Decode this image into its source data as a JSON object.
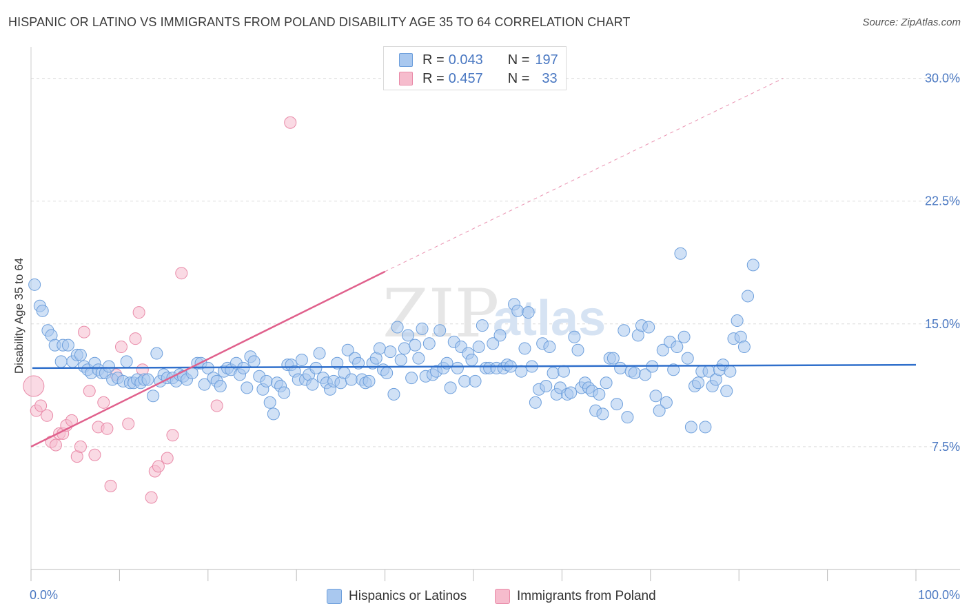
{
  "header": {
    "title": "HISPANIC OR LATINO VS IMMIGRANTS FROM POLAND DISABILITY AGE 35 TO 64 CORRELATION CHART",
    "source": "Source: ZipAtlas.com"
  },
  "watermark": {
    "zip": "ZIP",
    "atlas": "atlas"
  },
  "legend": {
    "rows": [
      {
        "r_label": "R = ",
        "r_value": "0.043",
        "n_label": "N = ",
        "n_value": "197"
      },
      {
        "r_label": "R = ",
        "r_value": "0.457",
        "n_label": "N = ",
        "n_value": "33"
      }
    ]
  },
  "bottom_legend": {
    "series_a": "Hispanics or Latinos",
    "series_b": "Immigrants from Poland"
  },
  "colors": {
    "blue_fill": "#a9c8ef",
    "blue_stroke": "#6d9fdc",
    "blue_line": "#2f6fcb",
    "pink_fill": "#f6bccd",
    "pink_stroke": "#e98aa8",
    "pink_line": "#e0608c",
    "tick_text": "#4a78c2",
    "grid": "#dcdcdc"
  },
  "chart_data": {
    "type": "scatter",
    "title": "HISPANIC OR LATINO VS IMMIGRANTS FROM POLAND DISABILITY AGE 35 TO 64 CORRELATION CHART",
    "xlabel": "",
    "ylabel": "Disability Age 35 to 64",
    "xlim": [
      0,
      100
    ],
    "ylim": [
      0,
      31.5
    ],
    "x_tick_labels": [
      "0.0%",
      "100.0%"
    ],
    "y_ticks": [
      7.5,
      15.0,
      22.5,
      30.0
    ],
    "y_tick_labels": [
      "7.5%",
      "15.0%",
      "22.5%",
      "30.0%"
    ],
    "grid": "horizontal dashed",
    "legend_position": "top-center",
    "series": [
      {
        "name": "Hispanics or Latinos",
        "color": "#a9c8ef",
        "trend": {
          "x": [
            0,
            100
          ],
          "y": [
            12.3,
            12.5
          ]
        },
        "points": [
          [
            0.4,
            17.4
          ],
          [
            1.0,
            16.1
          ],
          [
            1.3,
            15.8
          ],
          [
            1.9,
            14.6
          ],
          [
            2.3,
            14.3
          ],
          [
            2.7,
            13.7
          ],
          [
            3.4,
            12.7
          ],
          [
            3.6,
            13.7
          ],
          [
            4.2,
            13.7
          ],
          [
            4.7,
            12.7
          ],
          [
            5.2,
            13.1
          ],
          [
            5.6,
            13.1
          ],
          [
            6.0,
            12.4
          ],
          [
            6.4,
            12.2
          ],
          [
            6.8,
            12.0
          ],
          [
            7.2,
            12.6
          ],
          [
            7.6,
            12.2
          ],
          [
            8.0,
            12.0
          ],
          [
            8.4,
            12.0
          ],
          [
            8.8,
            12.4
          ],
          [
            9.2,
            11.6
          ],
          [
            9.8,
            11.7
          ],
          [
            10.4,
            11.5
          ],
          [
            10.8,
            12.7
          ],
          [
            11.2,
            11.4
          ],
          [
            11.6,
            11.4
          ],
          [
            12.0,
            11.6
          ],
          [
            12.4,
            11.4
          ],
          [
            12.8,
            11.6
          ],
          [
            13.2,
            11.6
          ],
          [
            13.8,
            10.6
          ],
          [
            14.2,
            13.2
          ],
          [
            14.6,
            11.5
          ],
          [
            15.0,
            11.9
          ],
          [
            15.4,
            11.7
          ],
          [
            16.0,
            11.7
          ],
          [
            16.4,
            11.5
          ],
          [
            16.8,
            11.9
          ],
          [
            17.2,
            11.8
          ],
          [
            17.6,
            11.6
          ],
          [
            18.2,
            12.0
          ],
          [
            18.8,
            12.6
          ],
          [
            19.2,
            12.6
          ],
          [
            19.6,
            11.3
          ],
          [
            20.0,
            12.3
          ],
          [
            20.6,
            11.7
          ],
          [
            21.0,
            11.5
          ],
          [
            21.4,
            11.2
          ],
          [
            21.8,
            12.1
          ],
          [
            22.2,
            12.3
          ],
          [
            22.6,
            12.2
          ],
          [
            23.2,
            12.6
          ],
          [
            23.6,
            11.9
          ],
          [
            24.0,
            12.3
          ],
          [
            24.4,
            11.1
          ],
          [
            24.8,
            13.0
          ],
          [
            25.2,
            12.7
          ],
          [
            25.8,
            11.8
          ],
          [
            26.2,
            11.0
          ],
          [
            26.6,
            11.5
          ],
          [
            27.0,
            10.2
          ],
          [
            27.4,
            9.5
          ],
          [
            27.8,
            11.4
          ],
          [
            28.2,
            11.2
          ],
          [
            28.6,
            10.8
          ],
          [
            29.0,
            12.5
          ],
          [
            29.4,
            12.5
          ],
          [
            29.8,
            12.1
          ],
          [
            30.2,
            11.6
          ],
          [
            30.6,
            12.8
          ],
          [
            31.0,
            11.6
          ],
          [
            31.4,
            11.9
          ],
          [
            31.8,
            11.3
          ],
          [
            32.2,
            12.3
          ],
          [
            32.6,
            13.2
          ],
          [
            33.0,
            11.7
          ],
          [
            33.4,
            11.4
          ],
          [
            33.8,
            11.0
          ],
          [
            34.2,
            11.5
          ],
          [
            34.6,
            12.6
          ],
          [
            35.0,
            11.4
          ],
          [
            35.4,
            12.0
          ],
          [
            35.8,
            13.4
          ],
          [
            36.2,
            11.6
          ],
          [
            36.6,
            12.9
          ],
          [
            37.0,
            12.6
          ],
          [
            37.4,
            11.6
          ],
          [
            37.8,
            11.4
          ],
          [
            38.2,
            11.5
          ],
          [
            38.6,
            12.6
          ],
          [
            39.0,
            12.9
          ],
          [
            39.4,
            13.5
          ],
          [
            39.8,
            12.2
          ],
          [
            40.2,
            12.0
          ],
          [
            40.6,
            13.3
          ],
          [
            41.0,
            10.7
          ],
          [
            41.4,
            14.8
          ],
          [
            41.8,
            12.8
          ],
          [
            42.2,
            13.5
          ],
          [
            42.6,
            14.3
          ],
          [
            43.0,
            11.7
          ],
          [
            43.4,
            13.7
          ],
          [
            43.8,
            12.9
          ],
          [
            44.2,
            14.7
          ],
          [
            44.6,
            11.8
          ],
          [
            45.0,
            13.8
          ],
          [
            45.4,
            11.9
          ],
          [
            45.8,
            12.1
          ],
          [
            46.2,
            14.6
          ],
          [
            46.6,
            12.3
          ],
          [
            47.0,
            12.6
          ],
          [
            47.4,
            11.1
          ],
          [
            47.8,
            13.9
          ],
          [
            48.2,
            12.3
          ],
          [
            48.6,
            13.6
          ],
          [
            49.0,
            11.5
          ],
          [
            49.4,
            13.2
          ],
          [
            49.8,
            12.8
          ],
          [
            50.2,
            11.5
          ],
          [
            50.6,
            13.6
          ],
          [
            51.0,
            14.9
          ],
          [
            51.4,
            12.3
          ],
          [
            51.8,
            12.3
          ],
          [
            52.2,
            13.8
          ],
          [
            52.6,
            12.3
          ],
          [
            53.0,
            14.3
          ],
          [
            53.4,
            12.3
          ],
          [
            53.8,
            12.5
          ],
          [
            54.2,
            12.4
          ],
          [
            54.6,
            16.2
          ],
          [
            55.0,
            15.8
          ],
          [
            55.4,
            12.1
          ],
          [
            55.8,
            13.5
          ],
          [
            56.2,
            15.7
          ],
          [
            56.6,
            12.4
          ],
          [
            57.0,
            10.2
          ],
          [
            57.4,
            11.0
          ],
          [
            57.8,
            13.8
          ],
          [
            58.2,
            11.2
          ],
          [
            58.6,
            13.6
          ],
          [
            59.0,
            12.0
          ],
          [
            59.4,
            10.7
          ],
          [
            59.8,
            11.1
          ],
          [
            60.2,
            12.1
          ],
          [
            60.6,
            10.7
          ],
          [
            61.0,
            10.8
          ],
          [
            61.4,
            14.2
          ],
          [
            61.8,
            13.4
          ],
          [
            62.2,
            11.1
          ],
          [
            62.6,
            11.4
          ],
          [
            63.0,
            11.1
          ],
          [
            63.4,
            10.9
          ],
          [
            63.8,
            9.7
          ],
          [
            64.2,
            10.7
          ],
          [
            64.6,
            9.5
          ],
          [
            65.0,
            11.4
          ],
          [
            65.4,
            12.9
          ],
          [
            65.8,
            12.9
          ],
          [
            66.2,
            10.1
          ],
          [
            66.6,
            12.3
          ],
          [
            67.0,
            14.6
          ],
          [
            67.4,
            9.3
          ],
          [
            67.8,
            12.1
          ],
          [
            68.2,
            12.0
          ],
          [
            68.6,
            14.3
          ],
          [
            69.0,
            14.9
          ],
          [
            69.4,
            11.9
          ],
          [
            69.8,
            14.8
          ],
          [
            70.2,
            12.4
          ],
          [
            70.6,
            10.6
          ],
          [
            71.0,
            9.7
          ],
          [
            71.4,
            13.4
          ],
          [
            71.8,
            10.2
          ],
          [
            72.2,
            13.9
          ],
          [
            72.6,
            12.2
          ],
          [
            73.0,
            13.6
          ],
          [
            73.4,
            19.3
          ],
          [
            73.8,
            14.2
          ],
          [
            74.2,
            12.9
          ],
          [
            74.6,
            8.7
          ],
          [
            75.0,
            11.2
          ],
          [
            75.4,
            11.4
          ],
          [
            75.8,
            12.1
          ],
          [
            76.2,
            8.7
          ],
          [
            76.6,
            12.1
          ],
          [
            77.0,
            11.2
          ],
          [
            77.4,
            11.6
          ],
          [
            77.8,
            12.2
          ],
          [
            78.2,
            12.5
          ],
          [
            78.6,
            10.9
          ],
          [
            79.0,
            12.1
          ],
          [
            79.4,
            14.1
          ],
          [
            79.8,
            15.2
          ],
          [
            80.2,
            14.2
          ],
          [
            80.6,
            13.6
          ],
          [
            81.0,
            16.7
          ],
          [
            81.6,
            18.6
          ]
        ]
      },
      {
        "name": "Immigrants from Poland",
        "color": "#f6bccd",
        "trend": {
          "x": [
            0,
            40
          ],
          "y": [
            7.5,
            18.2
          ]
        },
        "trend_extension": {
          "x": [
            40,
            85
          ],
          "y": [
            18.2,
            30.0
          ]
        },
        "points": [
          [
            0.3,
            11.2
          ],
          [
            0.6,
            9.7
          ],
          [
            1.1,
            10.0
          ],
          [
            1.8,
            9.4
          ],
          [
            2.3,
            7.8
          ],
          [
            2.8,
            7.6
          ],
          [
            3.2,
            8.3
          ],
          [
            3.6,
            8.3
          ],
          [
            4.0,
            8.8
          ],
          [
            4.6,
            9.1
          ],
          [
            5.2,
            6.9
          ],
          [
            5.6,
            7.5
          ],
          [
            6.0,
            14.5
          ],
          [
            6.6,
            10.9
          ],
          [
            7.2,
            7.0
          ],
          [
            7.6,
            8.7
          ],
          [
            8.2,
            10.2
          ],
          [
            8.6,
            8.6
          ],
          [
            9.0,
            5.1
          ],
          [
            9.6,
            11.9
          ],
          [
            10.2,
            13.6
          ],
          [
            11.0,
            8.9
          ],
          [
            11.8,
            14.1
          ],
          [
            12.2,
            15.7
          ],
          [
            12.6,
            12.2
          ],
          [
            13.6,
            4.4
          ],
          [
            14.0,
            6.0
          ],
          [
            14.4,
            6.3
          ],
          [
            15.4,
            6.8
          ],
          [
            16.0,
            8.2
          ],
          [
            17.0,
            18.1
          ],
          [
            21.0,
            10.0
          ],
          [
            29.3,
            27.3
          ]
        ]
      }
    ]
  }
}
